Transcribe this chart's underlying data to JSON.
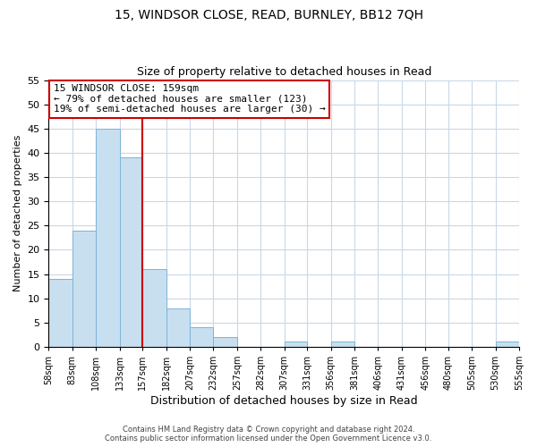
{
  "title": "15, WINDSOR CLOSE, READ, BURNLEY, BB12 7QH",
  "subtitle": "Size of property relative to detached houses in Read",
  "xlabel": "Distribution of detached houses by size in Read",
  "ylabel": "Number of detached properties",
  "bar_color": "#c8dff0",
  "bar_edge_color": "#7db3d8",
  "bin_edges": [
    58,
    83,
    108,
    133,
    157,
    182,
    207,
    232,
    257,
    282,
    307,
    331,
    356,
    381,
    406,
    431,
    456,
    480,
    505,
    530,
    555
  ],
  "bin_labels": [
    "58sqm",
    "83sqm",
    "108sqm",
    "133sqm",
    "157sqm",
    "182sqm",
    "207sqm",
    "232sqm",
    "257sqm",
    "282sqm",
    "307sqm",
    "331sqm",
    "356sqm",
    "381sqm",
    "406sqm",
    "431sqm",
    "456sqm",
    "480sqm",
    "505sqm",
    "530sqm",
    "555sqm"
  ],
  "bar_heights": [
    14,
    24,
    45,
    39,
    16,
    8,
    4,
    2,
    0,
    0,
    1,
    0,
    1,
    0,
    0,
    0,
    0,
    0,
    0,
    1
  ],
  "vline_x": 157,
  "vline_color": "#cc0000",
  "annotation_line1": "15 WINDSOR CLOSE: 159sqm",
  "annotation_line2": "← 79% of detached houses are smaller (123)",
  "annotation_line3": "19% of semi-detached houses are larger (30) →",
  "annotation_box_color": "#ffffff",
  "annotation_box_edge": "#cc0000",
  "ylim": [
    0,
    55
  ],
  "yticks": [
    0,
    5,
    10,
    15,
    20,
    25,
    30,
    35,
    40,
    45,
    50,
    55
  ],
  "footer_line1": "Contains HM Land Registry data © Crown copyright and database right 2024.",
  "footer_line2": "Contains public sector information licensed under the Open Government Licence v3.0.",
  "background_color": "#ffffff",
  "grid_color": "#c8d8e8"
}
